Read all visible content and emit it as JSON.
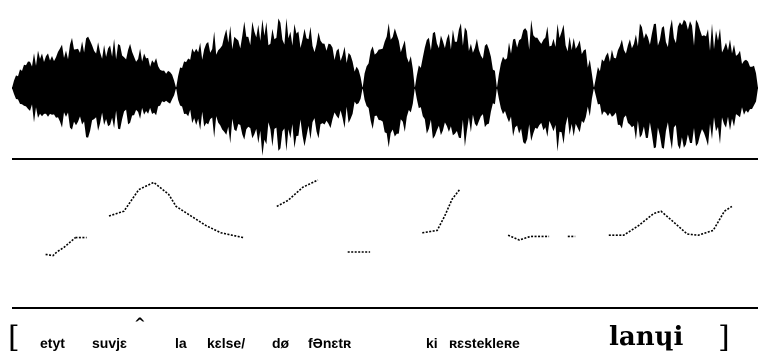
{
  "figure": {
    "waveform": {
      "color": "#000000",
      "segments": [
        {
          "t0": 0.0,
          "t1": 0.22,
          "amp": 0.72
        },
        {
          "t0": 0.22,
          "t1": 0.47,
          "amp": 0.98
        },
        {
          "t0": 0.47,
          "t1": 0.54,
          "amp": 0.92
        },
        {
          "t0": 0.54,
          "t1": 0.65,
          "amp": 0.95
        },
        {
          "t0": 0.65,
          "t1": 0.78,
          "amp": 0.97
        },
        {
          "t0": 0.78,
          "t1": 1.0,
          "amp": 0.99
        }
      ]
    },
    "pitch_contours": [
      {
        "points": [
          [
            0.045,
            0.72
          ],
          [
            0.055,
            0.73
          ],
          [
            0.06,
            0.7
          ],
          [
            0.07,
            0.66
          ],
          [
            0.085,
            0.58
          ]
        ]
      },
      {
        "points": [
          [
            0.085,
            0.58
          ],
          [
            0.1,
            0.58
          ]
        ]
      },
      {
        "points": [
          [
            0.13,
            0.4
          ],
          [
            0.15,
            0.36
          ],
          [
            0.17,
            0.18
          ],
          [
            0.19,
            0.12
          ],
          [
            0.21,
            0.22
          ],
          [
            0.22,
            0.32
          ],
          [
            0.24,
            0.4
          ],
          [
            0.26,
            0.48
          ],
          [
            0.28,
            0.54
          ],
          [
            0.31,
            0.58
          ]
        ]
      },
      {
        "points": [
          [
            0.355,
            0.32
          ],
          [
            0.37,
            0.27
          ],
          [
            0.39,
            0.16
          ],
          [
            0.41,
            0.1
          ]
        ]
      },
      {
        "points": [
          [
            0.45,
            0.7
          ],
          [
            0.48,
            0.7
          ]
        ]
      },
      {
        "points": [
          [
            0.55,
            0.54
          ],
          [
            0.57,
            0.52
          ],
          [
            0.58,
            0.4
          ],
          [
            0.59,
            0.26
          ],
          [
            0.6,
            0.18
          ]
        ]
      },
      {
        "points": [
          [
            0.665,
            0.56
          ],
          [
            0.68,
            0.6
          ],
          [
            0.695,
            0.57
          ],
          [
            0.71,
            0.57
          ],
          [
            0.72,
            0.57
          ]
        ]
      },
      {
        "points": [
          [
            0.745,
            0.57
          ],
          [
            0.755,
            0.57
          ]
        ]
      },
      {
        "points": [
          [
            0.8,
            0.56
          ],
          [
            0.82,
            0.56
          ],
          [
            0.84,
            0.48
          ],
          [
            0.86,
            0.38
          ],
          [
            0.87,
            0.36
          ],
          [
            0.885,
            0.44
          ],
          [
            0.905,
            0.55
          ],
          [
            0.92,
            0.56
          ],
          [
            0.94,
            0.52
          ],
          [
            0.955,
            0.36
          ],
          [
            0.965,
            0.32
          ]
        ]
      }
    ]
  },
  "transcription": {
    "open_bracket": "[",
    "close_bracket": "]",
    "words": [
      "etyt",
      "suvjɛ",
      "la",
      "kɛlse/",
      "dø",
      "fƏnɛtʀ",
      "ki",
      "ʀɛsteklеʀe",
      "lanɥi"
    ],
    "circumflex": "^"
  }
}
